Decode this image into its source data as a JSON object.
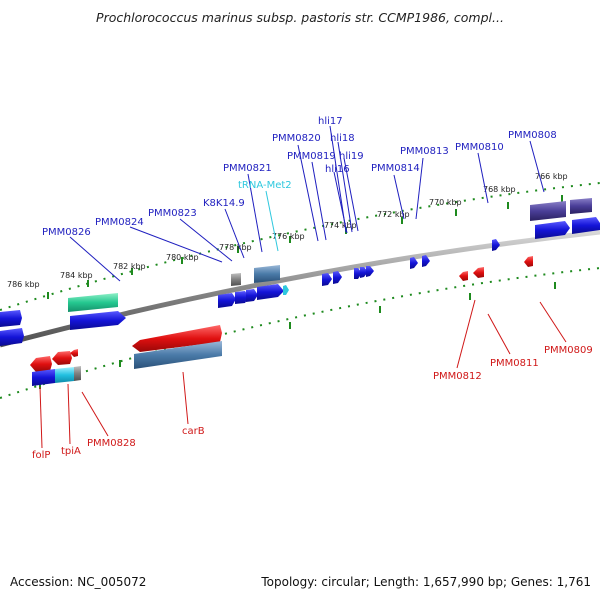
{
  "title": "Prochlorococcus marinus subsp. pastoris str. CCMP1986, compl...",
  "footer": {
    "accession": "Accession: NC_005072",
    "stats": "Topology: circular; Length: 1,657,990 bp; Genes: 1,761"
  },
  "ticks": [
    "786 kbp",
    "784 kbp",
    "782 kbp",
    "780 kbp",
    "778 kbp",
    "776 kbp",
    "774 kbp",
    "772 kbp",
    "770 kbp",
    "768 kbp",
    "766 kbp"
  ],
  "labels": {
    "top": [
      "PMM0826",
      "PMM0824",
      "PMM0823",
      "K8K14.9",
      "PMM0821",
      "tRNA-Met2",
      "PMM0820",
      "PMM0819",
      "hli17",
      "hli18",
      "hli19",
      "hli16",
      "PMM0814",
      "PMM0813",
      "PMM0810",
      "PMM0808"
    ],
    "bottom": [
      "folP",
      "tpiA",
      "PMM0828",
      "carB",
      "PMM0812",
      "PMM0811",
      "PMM0809"
    ]
  },
  "colors": {
    "forward_gene": "#1414d8",
    "reverse_gene": "#e01010",
    "trna": "#2ec8de",
    "backbone": "#808080",
    "tick": "#1e8a1e"
  }
}
